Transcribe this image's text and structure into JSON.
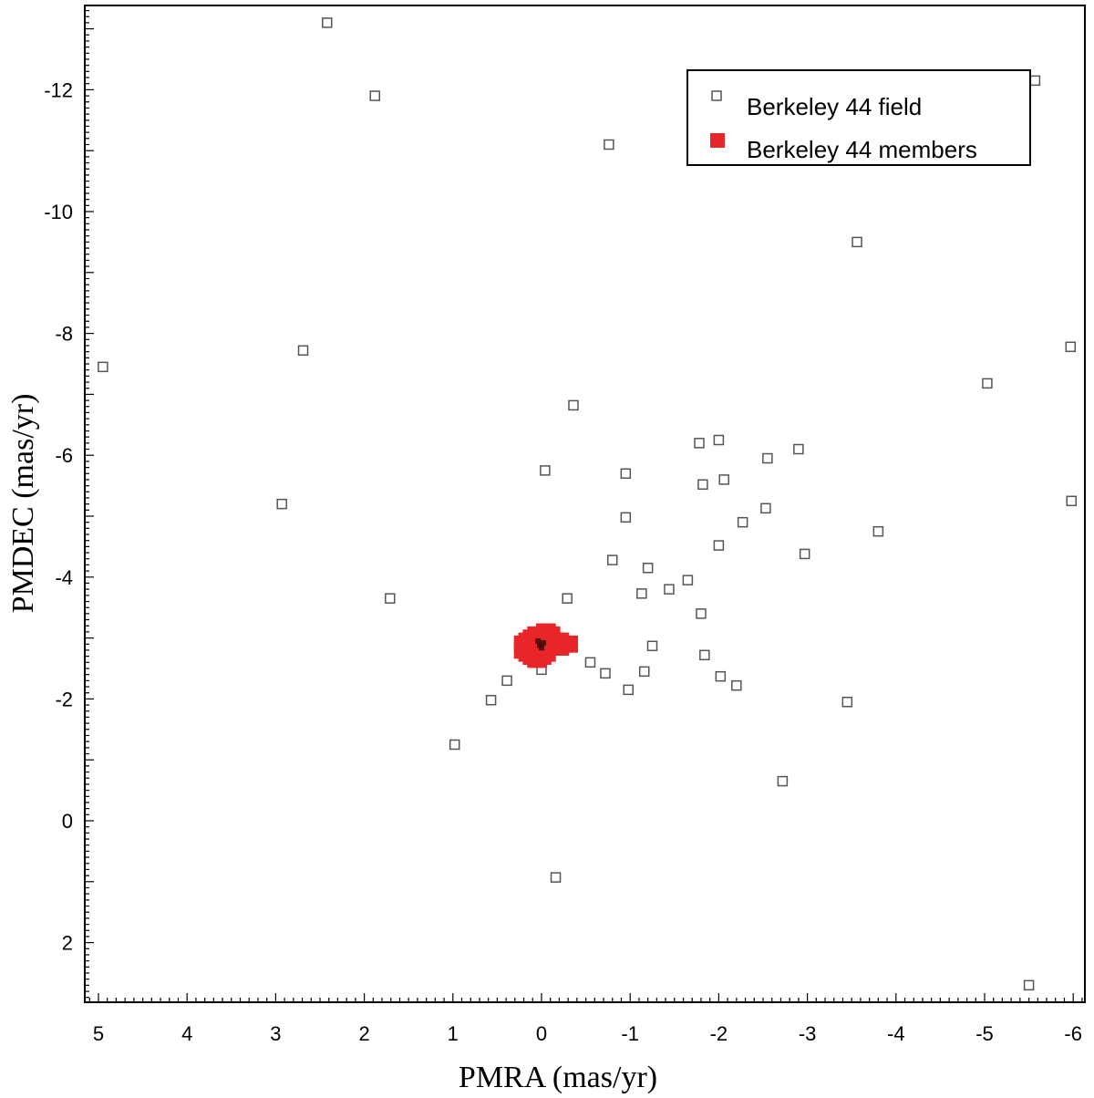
{
  "chart_data": {
    "type": "scatter",
    "title": "",
    "xlabel": "PMRA (mas/yr)",
    "ylabel": "PMDEC (mas/yr)",
    "xlim": [
      5.2,
      -6.2
    ],
    "ylim": [
      3.0,
      -13.3
    ],
    "x_reversed": true,
    "y_reversed": true,
    "grid": false,
    "legend_position": "top-right",
    "x_ticks": [
      5,
      4,
      3,
      2,
      1,
      0,
      -1,
      -2,
      -3,
      -4,
      -5,
      -6
    ],
    "x_tick_labels": [
      "5",
      "4",
      "3",
      "2",
      "1",
      "0",
      "-1",
      "-2",
      "-3",
      "-4",
      "-5",
      "-6"
    ],
    "y_ticks": [
      -12,
      -10,
      -8,
      -6,
      -4,
      -2,
      0,
      2
    ],
    "y_tick_labels": [
      "-12",
      "-10",
      "-8",
      "-6",
      "-4",
      "-2",
      "0",
      "2"
    ],
    "series": [
      {
        "name": "Berkeley 44 field",
        "marker": "open-square",
        "color": "#555555",
        "points": [
          [
            2.42,
            -13.1
          ],
          [
            1.88,
            -11.9
          ],
          [
            -0.76,
            -11.1
          ],
          [
            -5.57,
            -12.15
          ],
          [
            -3.56,
            -9.5
          ],
          [
            4.95,
            -7.45
          ],
          [
            2.69,
            -7.72
          ],
          [
            -5.97,
            -7.78
          ],
          [
            -5.03,
            -7.18
          ],
          [
            -0.36,
            -6.82
          ],
          [
            -1.78,
            -6.2
          ],
          [
            -2.0,
            -6.25
          ],
          [
            -2.9,
            -6.1
          ],
          [
            -2.55,
            -5.95
          ],
          [
            -0.04,
            -5.75
          ],
          [
            -0.95,
            -5.7
          ],
          [
            -1.82,
            -5.52
          ],
          [
            -2.06,
            -5.6
          ],
          [
            2.93,
            -5.2
          ],
          [
            -5.98,
            -5.25
          ],
          [
            -2.53,
            -5.13
          ],
          [
            -0.95,
            -4.98
          ],
          [
            -2.27,
            -4.9
          ],
          [
            -3.8,
            -4.75
          ],
          [
            -2.0,
            -4.52
          ],
          [
            -2.97,
            -4.38
          ],
          [
            -0.8,
            -4.28
          ],
          [
            -1.2,
            -4.15
          ],
          [
            -1.65,
            -3.95
          ],
          [
            -1.44,
            -3.8
          ],
          [
            -1.13,
            -3.73
          ],
          [
            1.71,
            -3.65
          ],
          [
            -0.29,
            -3.65
          ],
          [
            -1.8,
            -3.4
          ],
          [
            -1.25,
            -2.87
          ],
          [
            -1.84,
            -2.72
          ],
          [
            -0.55,
            -2.6
          ],
          [
            -0.72,
            -2.42
          ],
          [
            -1.16,
            -2.45
          ],
          [
            0.0,
            -2.48
          ],
          [
            -2.02,
            -2.37
          ],
          [
            -2.2,
            -2.22
          ],
          [
            0.39,
            -2.3
          ],
          [
            -0.98,
            -2.15
          ],
          [
            0.57,
            -1.98
          ],
          [
            -3.45,
            -1.95
          ],
          [
            0.98,
            -1.25
          ],
          [
            -2.72,
            -0.65
          ],
          [
            -0.16,
            0.93
          ],
          [
            -5.5,
            2.7
          ]
        ]
      },
      {
        "name": "Berkeley 44 members",
        "marker": "filled-square",
        "color": "#e8262a",
        "points": [
          [
            0.25,
            -2.75
          ],
          [
            0.25,
            -2.85
          ],
          [
            0.25,
            -2.95
          ],
          [
            0.2,
            -2.7
          ],
          [
            0.2,
            -2.8
          ],
          [
            0.2,
            -2.9
          ],
          [
            0.2,
            -3.0
          ],
          [
            0.15,
            -2.65
          ],
          [
            0.15,
            -2.75
          ],
          [
            0.15,
            -2.85
          ],
          [
            0.15,
            -2.95
          ],
          [
            0.15,
            -3.05
          ],
          [
            0.1,
            -2.6
          ],
          [
            0.1,
            -2.7
          ],
          [
            0.1,
            -2.8
          ],
          [
            0.1,
            -2.9
          ],
          [
            0.1,
            -3.0
          ],
          [
            0.1,
            -3.1
          ],
          [
            0.05,
            -2.6
          ],
          [
            0.05,
            -2.7
          ],
          [
            0.05,
            -2.8
          ],
          [
            0.05,
            -2.9
          ],
          [
            0.05,
            -3.0
          ],
          [
            0.05,
            -3.1
          ],
          [
            0.0,
            -2.6
          ],
          [
            0.0,
            -2.7
          ],
          [
            0.0,
            -2.8
          ],
          [
            0.0,
            -2.9
          ],
          [
            0.0,
            -3.0
          ],
          [
            0.0,
            -3.1
          ],
          [
            0.0,
            -3.15
          ],
          [
            -0.05,
            -2.65
          ],
          [
            -0.05,
            -2.75
          ],
          [
            -0.05,
            -2.85
          ],
          [
            -0.05,
            -2.95
          ],
          [
            -0.05,
            -3.05
          ],
          [
            -0.05,
            -3.15
          ],
          [
            -0.1,
            -2.7
          ],
          [
            -0.1,
            -2.8
          ],
          [
            -0.1,
            -2.9
          ],
          [
            -0.1,
            -3.0
          ],
          [
            -0.1,
            -3.1
          ],
          [
            -0.1,
            -3.15
          ],
          [
            -0.15,
            -2.8
          ],
          [
            -0.15,
            -2.9
          ],
          [
            -0.15,
            -3.0
          ],
          [
            -0.15,
            -3.1
          ],
          [
            -0.2,
            -2.8
          ],
          [
            -0.2,
            -2.9
          ],
          [
            -0.2,
            -3.0
          ],
          [
            -0.25,
            -2.8
          ],
          [
            -0.25,
            -2.9
          ],
          [
            -0.25,
            -3.0
          ],
          [
            -0.3,
            -2.85
          ],
          [
            -0.3,
            -2.95
          ],
          [
            -0.35,
            -2.85
          ],
          [
            -0.35,
            -2.95
          ]
        ]
      }
    ],
    "center_highlight": {
      "color": "#3a0a0a",
      "points": [
        [
          0.02,
          -2.88
        ],
        [
          -0.02,
          -2.92
        ],
        [
          0.0,
          -2.84
        ],
        [
          0.04,
          -2.95
        ]
      ]
    }
  }
}
